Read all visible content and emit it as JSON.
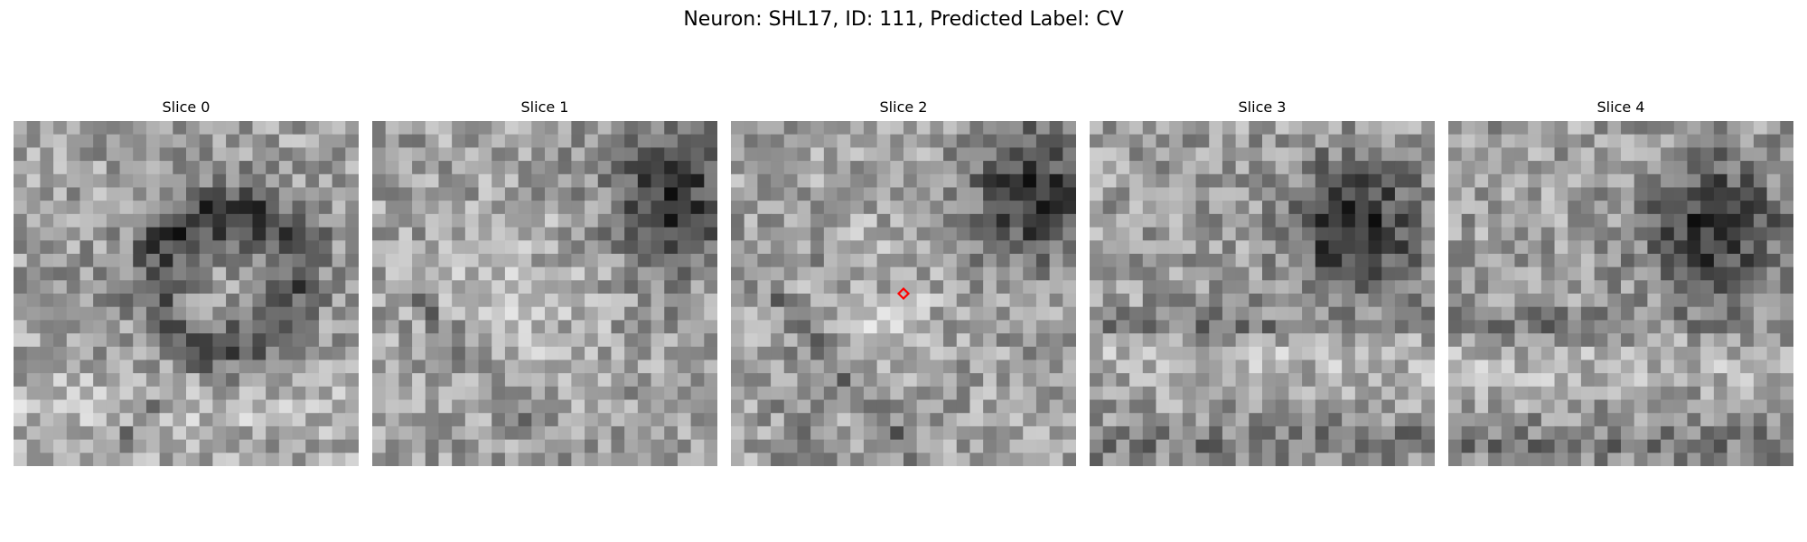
{
  "figure": {
    "title": "Neuron: SHL17, ID: 111, Predicted Label: CV"
  },
  "panels": [
    {
      "title": "Slice 0",
      "pattern": "blob-center",
      "has_marker": false
    },
    {
      "title": "Slice 1",
      "pattern": "dark-top-right",
      "has_marker": false
    },
    {
      "title": "Slice 2",
      "pattern": "dark-top-right-marker",
      "has_marker": true
    },
    {
      "title": "Slice 3",
      "pattern": "dark-top-right-band",
      "has_marker": false
    },
    {
      "title": "Slice 4",
      "pattern": "dark-top-right-band",
      "has_marker": false
    }
  ],
  "marker": {
    "shape": "diamond",
    "color": "#ff0000"
  },
  "colormap": "gray"
}
